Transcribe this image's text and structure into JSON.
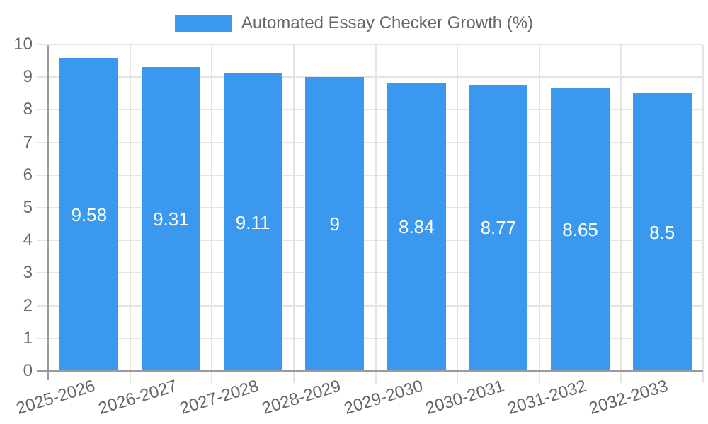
{
  "chart_data": {
    "type": "bar",
    "title": "",
    "legend": {
      "label": "Automated Essay Checker Growth (%)",
      "position": "top"
    },
    "categories": [
      "2025-2026",
      "2026-2027",
      "2027-2028",
      "2028-2029",
      "2029-2030",
      "2030-2031",
      "2031-2032",
      "2032-2033"
    ],
    "series": [
      {
        "name": "Automated Essay Checker Growth (%)",
        "values": [
          9.58,
          9.31,
          9.11,
          9,
          8.84,
          8.77,
          8.65,
          8.5
        ]
      }
    ],
    "value_labels": [
      "9.58",
      "9.31",
      "9.11",
      "9",
      "8.84",
      "8.77",
      "8.65",
      "8.5"
    ],
    "xlabel": "",
    "ylabel": "",
    "ylim": [
      0,
      10
    ],
    "yticks": [
      0,
      1,
      2,
      3,
      4,
      5,
      6,
      7,
      8,
      9,
      10
    ],
    "grid": true,
    "x_label_rotation_deg": -17,
    "colors": {
      "bar": "#3A99EE",
      "grid": "#E4E4E4",
      "axis": "#9B9B9B",
      "tick_text": "#666666",
      "value_text": "#FFFFFF",
      "background": "#FFFFFF"
    }
  }
}
